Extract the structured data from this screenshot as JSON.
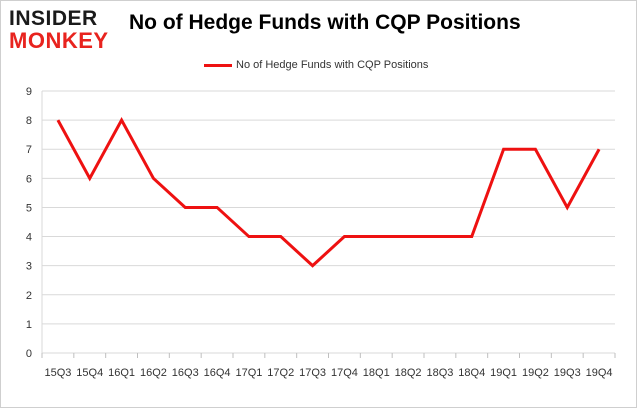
{
  "logo": {
    "line1": "INSIDER",
    "line2": "MONKEY"
  },
  "chart_data": {
    "type": "line",
    "title": "No of Hedge Funds with CQP Positions",
    "xlabel": "",
    "ylabel": "",
    "categories": [
      "15Q3",
      "15Q4",
      "16Q1",
      "16Q2",
      "16Q3",
      "16Q4",
      "17Q1",
      "17Q2",
      "17Q3",
      "17Q4",
      "18Q1",
      "18Q2",
      "18Q3",
      "18Q4",
      "19Q1",
      "19Q2",
      "19Q3",
      "19Q4"
    ],
    "series": [
      {
        "name": "No of Hedge Funds with CQP Positions",
        "color": "#ee1111",
        "values": [
          8,
          6,
          8,
          6,
          5,
          5,
          4,
          4,
          3,
          4,
          4,
          4,
          4,
          4,
          7,
          7,
          5,
          7
        ]
      }
    ],
    "ylim": [
      0,
      9
    ],
    "yticks": [
      0,
      1,
      2,
      3,
      4,
      5,
      6,
      7,
      8,
      9
    ],
    "grid": true,
    "legend": "top-center"
  }
}
